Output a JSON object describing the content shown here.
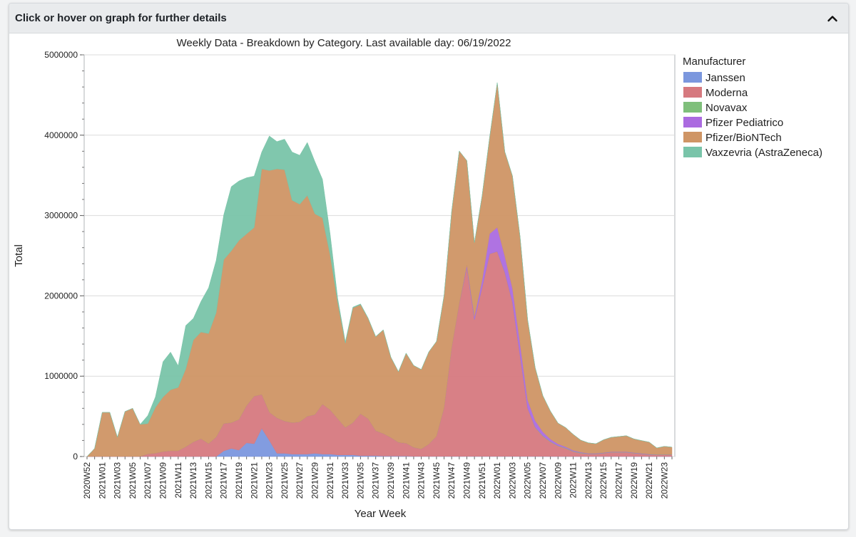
{
  "header": {
    "title": "Click or hover on graph for further details",
    "collapse_icon": "chevron-up-icon"
  },
  "chart_data": {
    "type": "area",
    "stacked": true,
    "title": "Weekly Data - Breakdown by Category. Last available day: 06/19/2022",
    "xlabel": "Year Week",
    "ylabel": "Total",
    "ylim": [
      0,
      5000000
    ],
    "yticks": [
      "0",
      "1000000",
      "2000000",
      "3000000",
      "4000000",
      "5000000"
    ],
    "grid": true,
    "legend_position": "right",
    "legend_title": "Manufacturer",
    "x_tick_labels": [
      "2020W52",
      "2021W01",
      "2021W03",
      "2021W05",
      "2021W07",
      "2021W09",
      "2021W11",
      "2021W13",
      "2021W15",
      "2021W17",
      "2021W19",
      "2021W21",
      "2021W23",
      "2021W25",
      "2021W27",
      "2021W29",
      "2021W31",
      "2021W33",
      "2021W35",
      "2021W37",
      "2021W39",
      "2021W41",
      "2021W43",
      "2021W45",
      "2021W47",
      "2021W49",
      "2021W51",
      "2022W01",
      "2022W03",
      "2022W05",
      "2022W07",
      "2022W09",
      "2022W11",
      "2022W13",
      "2022W15",
      "2022W17",
      "2022W19",
      "2022W21",
      "2022W23"
    ],
    "x": [
      "2020W52",
      "2020W53",
      "2021W01",
      "2021W02",
      "2021W03",
      "2021W04",
      "2021W05",
      "2021W06",
      "2021W07",
      "2021W08",
      "2021W09",
      "2021W10",
      "2021W11",
      "2021W12",
      "2021W13",
      "2021W14",
      "2021W15",
      "2021W16",
      "2021W17",
      "2021W18",
      "2021W19",
      "2021W20",
      "2021W21",
      "2021W22",
      "2021W23",
      "2021W24",
      "2021W25",
      "2021W26",
      "2021W27",
      "2021W28",
      "2021W29",
      "2021W30",
      "2021W31",
      "2021W32",
      "2021W33",
      "2021W34",
      "2021W35",
      "2021W36",
      "2021W37",
      "2021W38",
      "2021W39",
      "2021W40",
      "2021W41",
      "2021W42",
      "2021W43",
      "2021W44",
      "2021W45",
      "2021W46",
      "2021W47",
      "2021W48",
      "2021W49",
      "2021W50",
      "2021W51",
      "2021W52",
      "2022W01",
      "2022W02",
      "2022W03",
      "2022W04",
      "2022W05",
      "2022W06",
      "2022W07",
      "2022W08",
      "2022W09",
      "2022W10",
      "2022W11",
      "2022W12",
      "2022W13",
      "2022W14",
      "2022W15",
      "2022W16",
      "2022W17",
      "2022W18",
      "2022W19",
      "2022W20",
      "2022W21",
      "2022W22",
      "2022W23",
      "2022W24"
    ],
    "series": [
      {
        "name": "Janssen",
        "color": "#7b97de",
        "values": [
          0,
          0,
          0,
          0,
          0,
          0,
          0,
          0,
          0,
          0,
          0,
          0,
          0,
          0,
          0,
          0,
          0,
          0,
          70000,
          100000,
          80000,
          170000,
          160000,
          350000,
          200000,
          40000,
          40000,
          30000,
          30000,
          30000,
          40000,
          30000,
          30000,
          20000,
          20000,
          20000,
          10000,
          10000,
          10000,
          5000,
          5000,
          5000,
          5000,
          3000,
          3000,
          3000,
          3000,
          3000,
          3000,
          3000,
          3000,
          3000,
          3000,
          3000,
          3000,
          3000,
          3000,
          2000,
          2000,
          2000,
          2000,
          1000,
          1000,
          1000,
          1000,
          1000,
          1000,
          1000,
          1000,
          1000,
          1000,
          1000,
          1000,
          1000,
          1000,
          1000,
          1000,
          1000
        ]
      },
      {
        "name": "Moderna",
        "color": "#d6797f",
        "values": [
          0,
          0,
          0,
          0,
          0,
          0,
          0,
          0,
          30000,
          40000,
          60000,
          70000,
          70000,
          120000,
          180000,
          220000,
          160000,
          240000,
          340000,
          320000,
          380000,
          460000,
          590000,
          420000,
          350000,
          440000,
          400000,
          390000,
          400000,
          470000,
          480000,
          620000,
          550000,
          450000,
          340000,
          400000,
          520000,
          460000,
          310000,
          280000,
          230000,
          170000,
          160000,
          110000,
          90000,
          150000,
          250000,
          600000,
          1350000,
          1900000,
          2350000,
          1700000,
          2100000,
          2520000,
          2550000,
          2290000,
          1920000,
          1260000,
          600000,
          360000,
          250000,
          180000,
          130000,
          100000,
          60000,
          40000,
          30000,
          30000,
          40000,
          50000,
          50000,
          50000,
          40000,
          30000,
          20000,
          20000,
          20000,
          20000
        ]
      },
      {
        "name": "Novavax",
        "color": "#7fbf7b",
        "values": [
          0,
          0,
          0,
          0,
          0,
          0,
          0,
          0,
          0,
          0,
          0,
          0,
          0,
          0,
          0,
          0,
          0,
          0,
          0,
          0,
          0,
          0,
          0,
          0,
          0,
          0,
          0,
          0,
          0,
          0,
          0,
          0,
          0,
          0,
          0,
          0,
          0,
          0,
          0,
          0,
          0,
          0,
          0,
          0,
          0,
          0,
          0,
          0,
          0,
          0,
          0,
          0,
          0,
          0,
          0,
          0,
          0,
          0,
          0,
          3000,
          5000,
          5000,
          5000,
          5000,
          5000,
          5000,
          4000,
          4000,
          3000,
          3000,
          3000,
          3000,
          3000,
          3000,
          3000,
          3000,
          3000,
          3000
        ]
      },
      {
        "name": "Pfizer Pediatrico",
        "color": "#ab6be0",
        "values": [
          0,
          0,
          0,
          0,
          0,
          0,
          0,
          0,
          0,
          0,
          0,
          0,
          0,
          0,
          0,
          0,
          0,
          0,
          0,
          0,
          0,
          0,
          0,
          0,
          0,
          0,
          0,
          0,
          0,
          0,
          0,
          0,
          0,
          0,
          0,
          0,
          0,
          0,
          0,
          0,
          0,
          0,
          0,
          0,
          0,
          0,
          0,
          0,
          0,
          0,
          30000,
          40000,
          90000,
          250000,
          300000,
          200000,
          170000,
          150000,
          100000,
          80000,
          50000,
          30000,
          20000,
          15000,
          10000,
          8000,
          5000,
          5000,
          5000,
          5000,
          5000,
          5000,
          5000,
          5000,
          5000,
          3000,
          3000,
          3000
        ]
      },
      {
        "name": "Pfizer/BioNTech",
        "color": "#cf9565",
        "values": [
          0,
          100000,
          550000,
          550000,
          240000,
          560000,
          600000,
          400000,
          380000,
          570000,
          680000,
          760000,
          790000,
          970000,
          1270000,
          1330000,
          1370000,
          1550000,
          2040000,
          2140000,
          2230000,
          2140000,
          2100000,
          2810000,
          3010000,
          3100000,
          3130000,
          2770000,
          2710000,
          2750000,
          2500000,
          2320000,
          1930000,
          1450000,
          1050000,
          1430000,
          1360000,
          1250000,
          1170000,
          1290000,
          1000000,
          880000,
          1120000,
          1020000,
          990000,
          1150000,
          1180000,
          1400000,
          1700000,
          1900000,
          1300000,
          920000,
          1050000,
          1200000,
          1800000,
          1300000,
          1400000,
          1330000,
          1000000,
          660000,
          450000,
          350000,
          260000,
          240000,
          200000,
          150000,
          130000,
          120000,
          160000,
          180000,
          190000,
          200000,
          170000,
          160000,
          150000,
          80000,
          100000,
          90000
        ]
      },
      {
        "name": "Vaxzevria (AstraZeneca)",
        "color": "#79c4a9",
        "values": [
          0,
          0,
          0,
          0,
          0,
          0,
          0,
          0,
          100000,
          130000,
          440000,
          470000,
          270000,
          540000,
          270000,
          380000,
          570000,
          650000,
          560000,
          800000,
          740000,
          700000,
          640000,
          210000,
          430000,
          340000,
          380000,
          600000,
          610000,
          660000,
          650000,
          480000,
          260000,
          50000,
          20000,
          10000,
          10000,
          5000,
          5000,
          3000,
          2000,
          2000,
          2000,
          2000,
          1000,
          1000,
          1000,
          1000,
          1000,
          1000,
          0,
          0,
          0,
          0,
          0,
          0,
          0,
          0,
          0,
          0,
          0,
          0,
          0,
          0,
          0,
          0,
          0,
          0,
          0,
          0,
          0,
          0,
          0,
          0,
          0,
          0,
          0,
          0
        ]
      }
    ]
  }
}
